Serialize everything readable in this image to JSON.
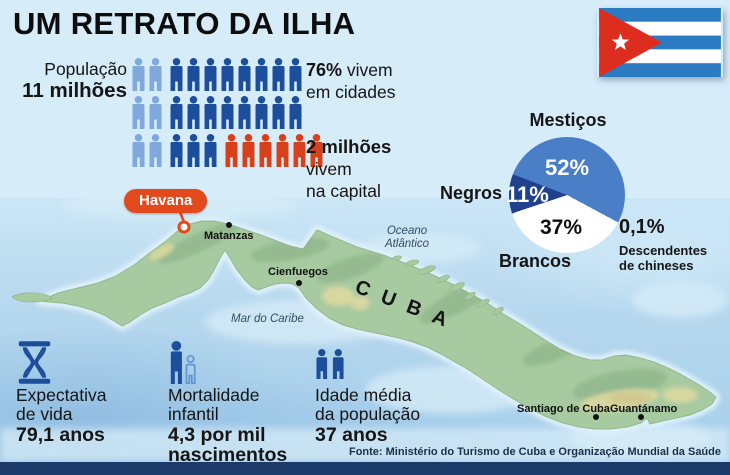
{
  "title": "UM RETRATO DA ILHA",
  "population": {
    "label": "População",
    "value": "11 milhões",
    "urban_pct": "76%",
    "urban_text": "vivem",
    "urban_line2": "em cidades",
    "capital_value": "2 milhões",
    "capital_line2": "vivem",
    "capital_line3": "na capital"
  },
  "map": {
    "country_label": "CUBA",
    "capital_label": "Havana",
    "ocean_line1": "Oceano",
    "ocean_line2": "Atlântico",
    "sea_label": "Mar do Caribe",
    "cities": [
      {
        "name": "Matanzas"
      },
      {
        "name": "Cienfuegos"
      },
      {
        "name": "Santiago de Cuba"
      },
      {
        "name": "Guantánamo"
      }
    ]
  },
  "stats": [
    {
      "icon": "hourglass-icon",
      "line1": "Expectativa",
      "line2": "de vida",
      "value": "79,1 anos"
    },
    {
      "icon": "infant-mortality-icon",
      "line1": "Mortalidade",
      "line2": "infantil",
      "value": "4,3 por mil",
      "value2": "nascimentos"
    },
    {
      "icon": "people-icon",
      "line1": "Idade média",
      "line2": "da população",
      "value": "37 anos"
    }
  ],
  "source": "Fonte: Ministério do Turismo de Cuba e Organização Mundial da Saúde",
  "flag_colors": {
    "blue": "#2b7bc2",
    "red": "#dd2d1e",
    "white": "#ffffff"
  },
  "colors": {
    "figure_dark_blue": "#1d4e9b",
    "figure_light_blue": "#7fa8dc",
    "figure_red": "#d8401c",
    "havana_pill": "#e2491d",
    "footer_bar": "#1c3a69"
  },
  "chart_data": [
    {
      "type": "pictogram",
      "title": "População 11 milhões",
      "unit": "person-icon",
      "rows": [
        {
          "groups": [
            {
              "color": "light_blue",
              "count": 2
            },
            {
              "color": "dark_blue",
              "count": 8
            }
          ]
        },
        {
          "groups": [
            {
              "color": "light_blue",
              "count": 2
            },
            {
              "color": "dark_blue",
              "count": 8
            }
          ]
        },
        {
          "groups": [
            {
              "color": "light_blue",
              "count": 2
            },
            {
              "color": "dark_blue",
              "count": 3
            },
            {
              "color": "red",
              "count": 6
            }
          ]
        }
      ],
      "colors": {
        "light_blue": "#7fa8dc",
        "dark_blue": "#1d4e9b",
        "red": "#d8401c"
      },
      "annotations": [
        "76% vivem em cidades",
        "2 milhões vivem na capital"
      ]
    },
    {
      "type": "pie",
      "start_angle_deg": 291,
      "slices": [
        {
          "label": "Mestiços",
          "value": 52,
          "pct_label": "52%",
          "color": "#4a7ec6"
        },
        {
          "label": "Brancos",
          "value": 37,
          "pct_label": "37%",
          "color": "#ffffff"
        },
        {
          "label": "Negros",
          "value": 11,
          "pct_label": "11%",
          "color": "#20418d"
        },
        {
          "label": "Descendentes de chineses",
          "label_line1": "Descendentes",
          "label_line2": "de chineses",
          "value": 0.1,
          "pct_label": "0,1%"
        }
      ]
    }
  ]
}
